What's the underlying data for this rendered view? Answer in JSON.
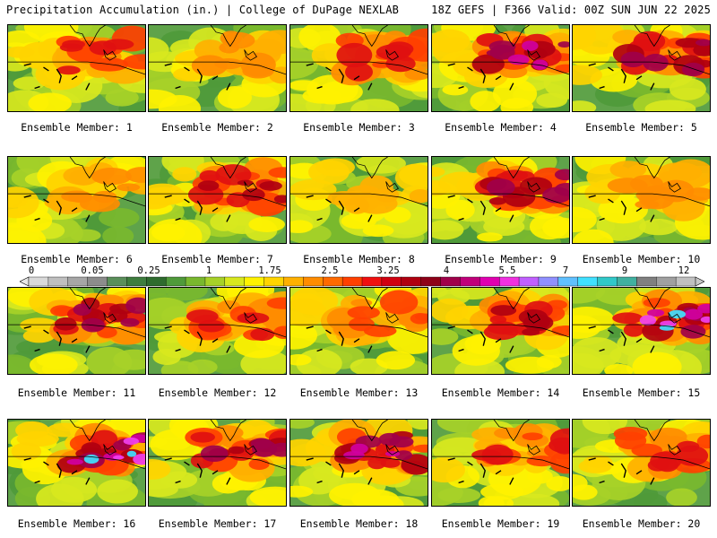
{
  "header": {
    "left": "Precipitation Accumulation (in.) | College of DuPage NEXLAB",
    "right": "18Z GEFS | F366 Valid: 00Z SUN JUN 22 2025"
  },
  "members": [
    {
      "label": "Ensemble Member: 1",
      "intensity": 0.55
    },
    {
      "label": "Ensemble Member: 2",
      "intensity": 0.35
    },
    {
      "label": "Ensemble Member: 3",
      "intensity": 0.5
    },
    {
      "label": "Ensemble Member: 4",
      "intensity": 0.75
    },
    {
      "label": "Ensemble Member: 5",
      "intensity": 0.7
    },
    {
      "label": "Ensemble Member: 6",
      "intensity": 0.4
    },
    {
      "label": "Ensemble Member: 7",
      "intensity": 0.6
    },
    {
      "label": "Ensemble Member: 8",
      "intensity": 0.3
    },
    {
      "label": "Ensemble Member: 9",
      "intensity": 0.7
    },
    {
      "label": "Ensemble Member: 10",
      "intensity": 0.4
    },
    {
      "label": "Ensemble Member: 11",
      "intensity": 0.7
    },
    {
      "label": "Ensemble Member: 12",
      "intensity": 0.5
    },
    {
      "label": "Ensemble Member: 13",
      "intensity": 0.45
    },
    {
      "label": "Ensemble Member: 14",
      "intensity": 0.6
    },
    {
      "label": "Ensemble Member: 15",
      "intensity": 0.85
    },
    {
      "label": "Ensemble Member: 16",
      "intensity": 0.9
    },
    {
      "label": "Ensemble Member: 17",
      "intensity": 0.7
    },
    {
      "label": "Ensemble Member: 18",
      "intensity": 0.75
    },
    {
      "label": "Ensemble Member: 19",
      "intensity": 0.5
    },
    {
      "label": "Ensemble Member: 20",
      "intensity": 0.55
    }
  ],
  "colorbar": {
    "ticks": [
      "0",
      "0.05",
      "0.25",
      "1",
      "1.75",
      "2.5",
      "3.25",
      "4",
      "5.5",
      "7",
      "9",
      "12"
    ],
    "colors": [
      "#d9d9d9",
      "#bfbfbf",
      "#a6a6a6",
      "#8c8c8c",
      "#5a8f5a",
      "#3e7d3e",
      "#2e6b2e",
      "#4f9a3a",
      "#79b82e",
      "#a7d128",
      "#d8e81e",
      "#fff200",
      "#ffd400",
      "#ffb000",
      "#ff8c00",
      "#ff6a00",
      "#ff4000",
      "#f01010",
      "#d00010",
      "#b00010",
      "#8e0018",
      "#a0004a",
      "#c0007a",
      "#e000b0",
      "#f030e0",
      "#c060ff",
      "#9090ff",
      "#60c0ff",
      "#40e0ff",
      "#30c8c8",
      "#40b0a0",
      "#808080",
      "#a0a0a0",
      "#c0c0c0"
    ]
  }
}
